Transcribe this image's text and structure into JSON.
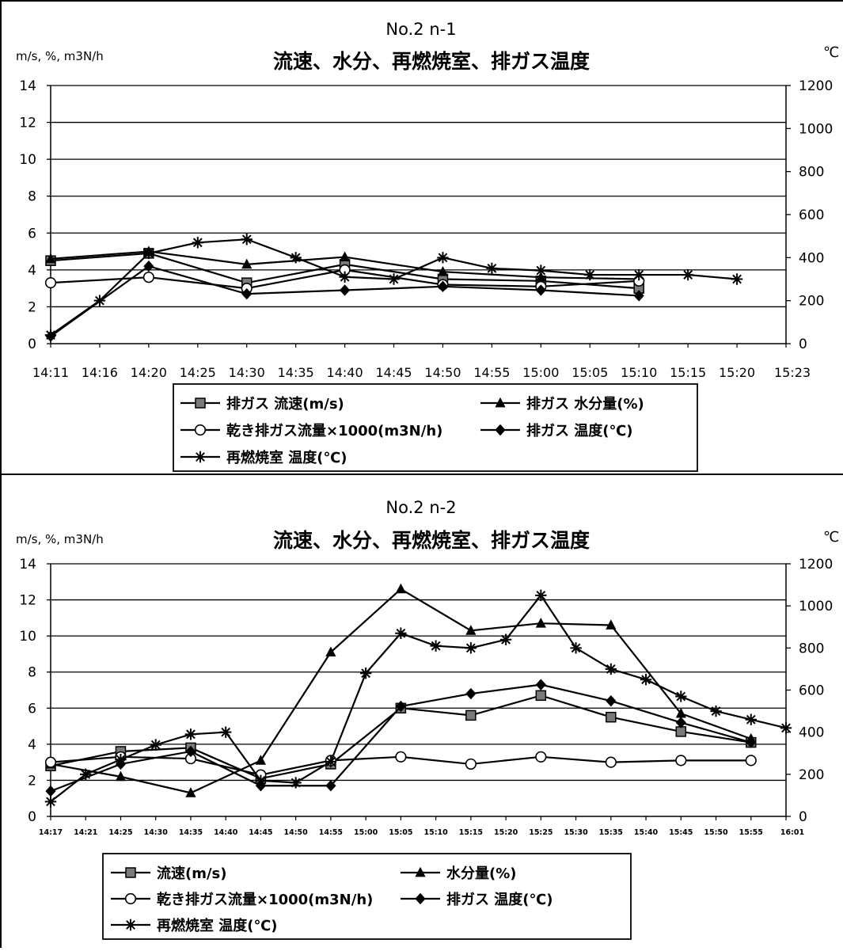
{
  "chart_data": [
    {
      "type": "line",
      "title": "No.2  n-1",
      "subtitle": "流速、水分、再燃焼室、排ガス温度",
      "ylabel_left": "m/s, %, m3N/h",
      "ylabel_right": "℃",
      "ylim_left": [
        0,
        14
      ],
      "ylim_right": [
        0,
        1200
      ],
      "yticks_left": [
        "0",
        "2",
        "4",
        "6",
        "8",
        "10",
        "12",
        "14"
      ],
      "yticks_right": [
        "0",
        "200",
        "400",
        "600",
        "800",
        "1000",
        "1200"
      ],
      "categories": [
        "14:11",
        "14:16",
        "14:20",
        "14:25",
        "14:30",
        "14:35",
        "14:40",
        "14:45",
        "14:50",
        "14:55",
        "15:00",
        "15:05",
        "15:10",
        "15:15",
        "15:20",
        "15:23"
      ],
      "grid": true,
      "legend_position": "bottom",
      "series": [
        {
          "name": "排ガス 流速(m/s)",
          "marker": "square",
          "axis": "left",
          "values": [
            4.5,
            null,
            4.9,
            null,
            3.3,
            null,
            4.3,
            null,
            3.5,
            null,
            3.4,
            null,
            3.0,
            null,
            null,
            null
          ]
        },
        {
          "name": "排ガス 水分量(%)",
          "marker": "triangle",
          "axis": "left",
          "values": [
            4.6,
            null,
            5.0,
            null,
            4.3,
            null,
            4.7,
            null,
            3.9,
            null,
            3.6,
            null,
            3.5,
            null,
            null,
            null
          ]
        },
        {
          "name": "乾き排ガス流量×1000(m3N/h)",
          "marker": "circle",
          "axis": "left",
          "values": [
            3.3,
            null,
            3.6,
            null,
            3.0,
            null,
            4.0,
            null,
            3.2,
            null,
            3.1,
            null,
            3.4,
            null,
            null,
            null
          ]
        },
        {
          "name": "排ガス 温度(℃)",
          "marker": "diamond",
          "axis": "left",
          "values": [
            0.4,
            null,
            4.2,
            null,
            2.7,
            null,
            2.9,
            null,
            3.1,
            null,
            2.9,
            null,
            2.6,
            null,
            null,
            null
          ]
        },
        {
          "name": "再燃焼室 温度(℃)",
          "marker": "asterisk",
          "axis": "right",
          "values": [
            40,
            200,
            420,
            470,
            485,
            400,
            310,
            300,
            400,
            350,
            340,
            320,
            320,
            320,
            300,
            null
          ]
        }
      ]
    },
    {
      "type": "line",
      "title": "No.2  n-2",
      "subtitle": "流速、水分、再燃焼室、排ガス温度",
      "ylabel_left": "m/s, %, m3N/h",
      "ylabel_right": "℃",
      "ylim_left": [
        0,
        14
      ],
      "ylim_right": [
        0,
        1200
      ],
      "yticks_left": [
        "0",
        "2",
        "4",
        "6",
        "8",
        "10",
        "12",
        "14"
      ],
      "yticks_right": [
        "0",
        "200",
        "400",
        "600",
        "800",
        "1000",
        "1200"
      ],
      "categories": [
        "14:17",
        "14:21",
        "14:25",
        "14:30",
        "14:35",
        "14:40",
        "14:45",
        "14:50",
        "14:55",
        "15:00",
        "15:05",
        "15:10",
        "15:15",
        "15:20",
        "15:25",
        "15:30",
        "15:35",
        "15:40",
        "15:45",
        "15:50",
        "15:55",
        "16:01"
      ],
      "grid": true,
      "legend_position": "bottom",
      "series": [
        {
          "name": "流速(m/s)",
          "marker": "square",
          "axis": "left",
          "values": [
            2.8,
            null,
            3.6,
            null,
            3.8,
            null,
            2.1,
            null,
            2.9,
            null,
            6.0,
            null,
            5.6,
            null,
            6.7,
            null,
            5.5,
            null,
            4.7,
            null,
            4.1,
            null
          ]
        },
        {
          "name": "水分量(%)",
          "marker": "triangle",
          "axis": "left",
          "values": [
            2.9,
            null,
            2.2,
            null,
            1.3,
            null,
            3.1,
            null,
            9.1,
            null,
            12.6,
            null,
            10.3,
            null,
            10.7,
            null,
            10.6,
            null,
            5.7,
            null,
            4.3,
            null
          ]
        },
        {
          "name": "乾き排ガス流量×1000(m3N/h)",
          "marker": "circle",
          "axis": "left",
          "values": [
            3.0,
            null,
            3.3,
            null,
            3.2,
            null,
            2.3,
            null,
            3.1,
            null,
            3.3,
            null,
            2.9,
            null,
            3.3,
            null,
            3.0,
            null,
            3.1,
            null,
            3.1,
            null
          ]
        },
        {
          "name": "排ガス 温度(℃)",
          "marker": "diamond",
          "axis": "left",
          "values": [
            1.4,
            null,
            2.9,
            null,
            3.6,
            null,
            1.7,
            null,
            1.7,
            null,
            6.1,
            null,
            6.8,
            null,
            7.3,
            null,
            6.4,
            null,
            5.2,
            null,
            4.1,
            null
          ]
        },
        {
          "name": "再燃焼室 温度(℃)",
          "marker": "asterisk",
          "axis": "right",
          "values": [
            70,
            200,
            270,
            340,
            390,
            400,
            170,
            160,
            260,
            680,
            870,
            810,
            800,
            840,
            1050,
            800,
            700,
            650,
            570,
            500,
            460,
            420
          ]
        }
      ]
    }
  ]
}
